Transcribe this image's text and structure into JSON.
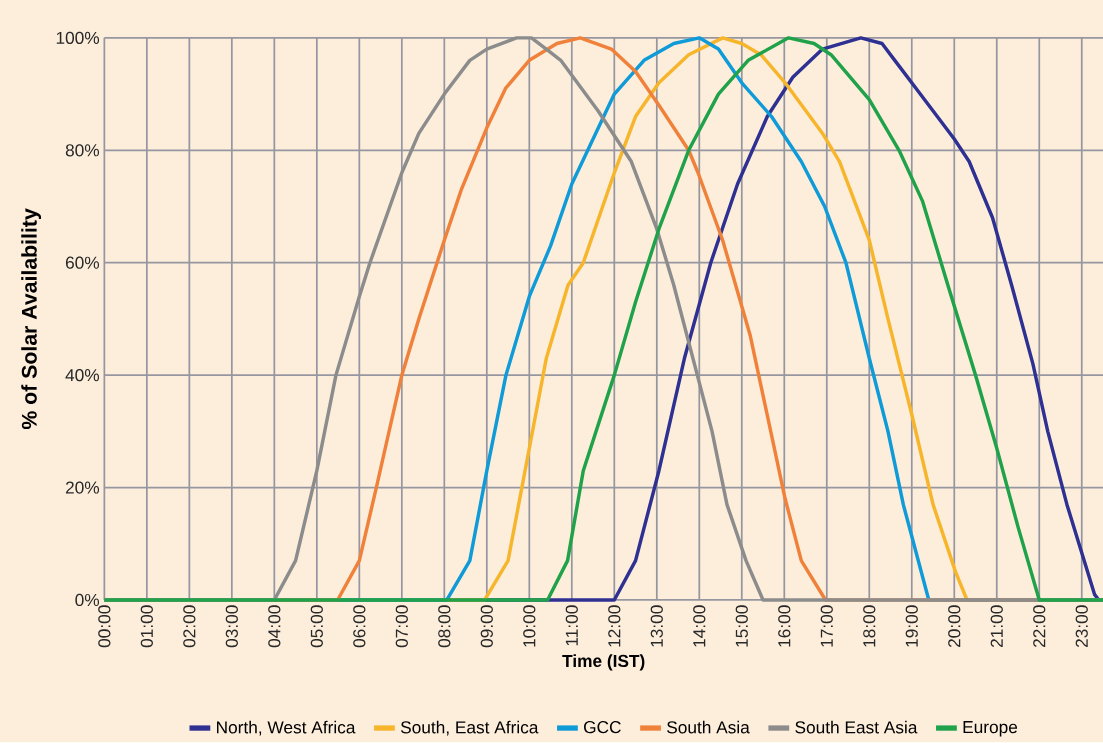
{
  "chart_data": {
    "type": "line",
    "xlabel": "Time (IST)",
    "ylabel": "% of Solar Availability",
    "xlim": [
      0,
      23.5
    ],
    "ylim": [
      0,
      100
    ],
    "xticks": [
      {
        "value": 0,
        "label": "00:00"
      },
      {
        "value": 1,
        "label": "01:00"
      },
      {
        "value": 2,
        "label": "02:00"
      },
      {
        "value": 3,
        "label": "03:00"
      },
      {
        "value": 4,
        "label": "04:00"
      },
      {
        "value": 5,
        "label": "05:00"
      },
      {
        "value": 6,
        "label": "06:00"
      },
      {
        "value": 7,
        "label": "07:00"
      },
      {
        "value": 8,
        "label": "08:00"
      },
      {
        "value": 9,
        "label": "09:00"
      },
      {
        "value": 10,
        "label": "10:00"
      },
      {
        "value": 11,
        "label": "11:00"
      },
      {
        "value": 12,
        "label": "12:00"
      },
      {
        "value": 13,
        "label": "13:00"
      },
      {
        "value": 14,
        "label": "14:00"
      },
      {
        "value": 15,
        "label": "15:00"
      },
      {
        "value": 16,
        "label": "16:00"
      },
      {
        "value": 17,
        "label": "17:00"
      },
      {
        "value": 18,
        "label": "18:00"
      },
      {
        "value": 19,
        "label": "19:00"
      },
      {
        "value": 20,
        "label": "20:00"
      },
      {
        "value": 21,
        "label": "21:00"
      },
      {
        "value": 22,
        "label": "22:00"
      },
      {
        "value": 23,
        "label": "23:00"
      }
    ],
    "yticks": [
      {
        "value": 0,
        "label": "0%"
      },
      {
        "value": 20,
        "label": "20%"
      },
      {
        "value": 40,
        "label": "40%"
      },
      {
        "value": 60,
        "label": "60%"
      },
      {
        "value": 80,
        "label": "80%"
      },
      {
        "value": 100,
        "label": "100%"
      }
    ],
    "grid": true,
    "legend": "bottom",
    "marker": "none",
    "line_style": "solid",
    "series": [
      {
        "name": "North, West Africa",
        "color": "#2e3192",
        "x": [
          0,
          12.0,
          12.5,
          13.05,
          13.65,
          14.27,
          14.9,
          15.6,
          16.2,
          16.9,
          17.8,
          18.3,
          18.6,
          19.2,
          20.0,
          20.35,
          20.9,
          21.35,
          21.85,
          22.2,
          22.65,
          23.3,
          23.4,
          23.5
        ],
        "values": [
          0,
          0,
          7,
          23,
          43,
          60,
          74,
          86,
          93,
          98,
          100,
          99,
          96,
          90,
          82,
          78,
          68,
          56,
          42,
          30,
          17,
          1,
          0,
          0
        ]
      },
      {
        "name": "South, East Africa",
        "color": "#f7b52c",
        "x": [
          0,
          8.95,
          9.5,
          10.0,
          10.4,
          10.91,
          11.27,
          12.0,
          12.5,
          13.05,
          13.75,
          14.55,
          15.0,
          15.45,
          16.02,
          16.9,
          17.3,
          18.0,
          18.44,
          19.0,
          19.5,
          20.03,
          20.3,
          23.5
        ],
        "values": [
          0,
          0,
          7,
          27,
          43,
          56,
          60,
          76,
          86,
          92,
          97,
          100,
          99,
          97,
          92,
          83,
          78,
          64,
          50,
          33,
          17,
          5,
          0,
          0
        ]
      },
      {
        "name": "GCC",
        "color": "#0f9ad8",
        "x": [
          0,
          8.06,
          8.6,
          9.0,
          9.45,
          10.0,
          10.5,
          11.0,
          12.0,
          12.7,
          13.4,
          14.0,
          14.45,
          15.0,
          15.7,
          16.4,
          16.95,
          17.45,
          18.0,
          18.44,
          18.8,
          19.4,
          23.5
        ],
        "values": [
          0,
          0,
          7,
          23,
          40,
          54,
          63,
          74,
          90,
          96,
          99,
          100,
          98,
          92,
          86,
          78,
          70,
          60,
          43,
          30,
          17,
          0,
          0
        ]
      },
      {
        "name": "South Asia",
        "color": "#f0813a",
        "x": [
          0,
          5.49,
          6.0,
          6.4,
          7.0,
          7.4,
          8.0,
          8.4,
          9.0,
          9.44,
          10.0,
          10.65,
          11.2,
          11.93,
          12.5,
          13.05,
          13.75,
          13.97,
          14.55,
          15.2,
          16.02,
          16.4,
          16.97,
          23.5
        ],
        "values": [
          0,
          0,
          7,
          20,
          40,
          50,
          64,
          73,
          84,
          91,
          96,
          99,
          100,
          98,
          94,
          88,
          80,
          76,
          64,
          47,
          18,
          7,
          0,
          0
        ]
      },
      {
        "name": "South East Asia",
        "color": "#8c8c8c",
        "x": [
          0,
          4.0,
          4.5,
          5.0,
          5.45,
          6.0,
          6.25,
          7.0,
          7.4,
          8.0,
          8.6,
          9.0,
          9.7,
          10.05,
          10.4,
          10.74,
          11.62,
          12.4,
          13.0,
          13.4,
          13.85,
          14.3,
          14.65,
          15.1,
          15.5,
          23.5
        ],
        "values": [
          0,
          0,
          7,
          23,
          40,
          54,
          60,
          76,
          83,
          90,
          96,
          98,
          100,
          100,
          98,
          96,
          87,
          78,
          66,
          56,
          43,
          30,
          17,
          7,
          0,
          0
        ]
      },
      {
        "name": "Europe",
        "color": "#1fa24a",
        "x": [
          0,
          10.43,
          10.9,
          11.27,
          12.0,
          12.5,
          13.05,
          13.75,
          14.45,
          15.15,
          16.1,
          16.7,
          17.1,
          18.0,
          18.7,
          19.25,
          19.85,
          20.5,
          21.0,
          21.5,
          22.0,
          23.5
        ],
        "values": [
          0,
          0,
          7,
          23,
          40,
          53,
          66,
          80,
          90,
          96,
          100,
          99,
          97,
          89,
          80,
          71,
          56,
          40,
          27,
          13,
          0,
          0
        ]
      }
    ]
  }
}
